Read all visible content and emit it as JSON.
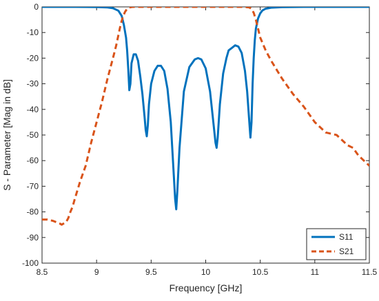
{
  "chart_data": {
    "type": "line",
    "title": "",
    "xlabel": "Frequency [GHz]",
    "ylabel": "S - Parameter [Mag in dB]",
    "xlim": [
      8.5,
      11.5
    ],
    "ylim": [
      -100,
      0
    ],
    "xticks": [
      "8.5",
      "9",
      "9.5",
      "10",
      "10.5",
      "11",
      "11.5"
    ],
    "xtick_values": [
      8.5,
      9,
      9.5,
      10,
      10.5,
      11,
      11.5
    ],
    "yticks": [
      "0",
      "-10",
      "-20",
      "-30",
      "-40",
      "-50",
      "-60",
      "-70",
      "-80",
      "-90",
      "-100"
    ],
    "ytick_values": [
      0,
      -10,
      -20,
      -30,
      -40,
      -50,
      -60,
      -70,
      -80,
      -90,
      -100
    ],
    "grid": false,
    "legend_position": "bottom-right",
    "series": [
      {
        "name": "S11",
        "color": "#0072BD",
        "dash": "solid",
        "x": [
          8.5,
          8.8,
          9.0,
          9.1,
          9.15,
          9.2,
          9.23,
          9.25,
          9.27,
          9.28,
          9.29,
          9.3,
          9.31,
          9.32,
          9.34,
          9.36,
          9.38,
          9.4,
          9.42,
          9.44,
          9.45,
          9.46,
          9.47,
          9.48,
          9.5,
          9.53,
          9.56,
          9.59,
          9.62,
          9.65,
          9.68,
          9.7,
          9.72,
          9.73,
          9.74,
          9.76,
          9.8,
          9.85,
          9.9,
          9.93,
          9.96,
          10.0,
          10.04,
          10.07,
          10.09,
          10.1,
          10.11,
          10.13,
          10.16,
          10.19,
          10.21,
          10.24,
          10.27,
          10.3,
          10.33,
          10.36,
          10.38,
          10.4,
          10.41,
          10.42,
          10.43,
          10.44,
          10.45,
          10.46,
          10.48,
          10.5,
          10.52,
          10.55,
          10.6,
          10.7,
          10.9,
          11.2,
          11.5
        ],
        "y": [
          0,
          0,
          -0.05,
          -0.2,
          -0.5,
          -1.5,
          -3.5,
          -7,
          -12,
          -17,
          -24,
          -32.5,
          -30,
          -22,
          -18.5,
          -18.5,
          -21,
          -27,
          -34,
          -43,
          -48,
          -50.5,
          -46,
          -38,
          -30,
          -25,
          -23,
          -23,
          -25,
          -32,
          -45,
          -60,
          -75,
          -79,
          -72,
          -55,
          -33,
          -23.5,
          -20.5,
          -20,
          -20.5,
          -24,
          -33,
          -45,
          -53,
          -55,
          -51,
          -38,
          -26,
          -20,
          -17,
          -16,
          -15,
          -15.5,
          -18,
          -25,
          -33,
          -45,
          -51,
          -45,
          -30,
          -20,
          -13,
          -8.5,
          -4.5,
          -2.5,
          -1.4,
          -0.7,
          -0.3,
          -0.1,
          0,
          0,
          0
        ]
      },
      {
        "name": "S21",
        "color": "#D95319",
        "dash": "dashed",
        "x": [
          8.5,
          8.55,
          8.6,
          8.63,
          8.66,
          8.68,
          8.7,
          8.72,
          8.74,
          8.76,
          8.78,
          8.8,
          8.85,
          8.9,
          8.95,
          9.0,
          9.05,
          9.1,
          9.15,
          9.18,
          9.2,
          9.22,
          9.24,
          9.26,
          9.28,
          9.3,
          9.33,
          9.4,
          10.0,
          10.35,
          10.4,
          10.42,
          10.44,
          10.46,
          10.48,
          10.5,
          10.55,
          10.6,
          10.7,
          10.8,
          10.9,
          11.0,
          11.05,
          11.1,
          11.2,
          11.3,
          11.35,
          11.4,
          11.45,
          11.5
        ],
        "y": [
          -83,
          -83,
          -83.5,
          -84,
          -84.5,
          -85,
          -84.5,
          -84,
          -82.5,
          -80,
          -78,
          -75,
          -68,
          -62,
          -53,
          -45,
          -37,
          -28,
          -20,
          -15,
          -11,
          -7,
          -4,
          -2,
          -0.7,
          -0.2,
          0,
          0,
          0,
          0,
          -0.2,
          -0.8,
          -2.3,
          -5,
          -8.5,
          -12,
          -17,
          -21,
          -28,
          -34,
          -39,
          -45,
          -47,
          -49,
          -50,
          -54,
          -55,
          -58,
          -60,
          -62
        ]
      }
    ]
  }
}
